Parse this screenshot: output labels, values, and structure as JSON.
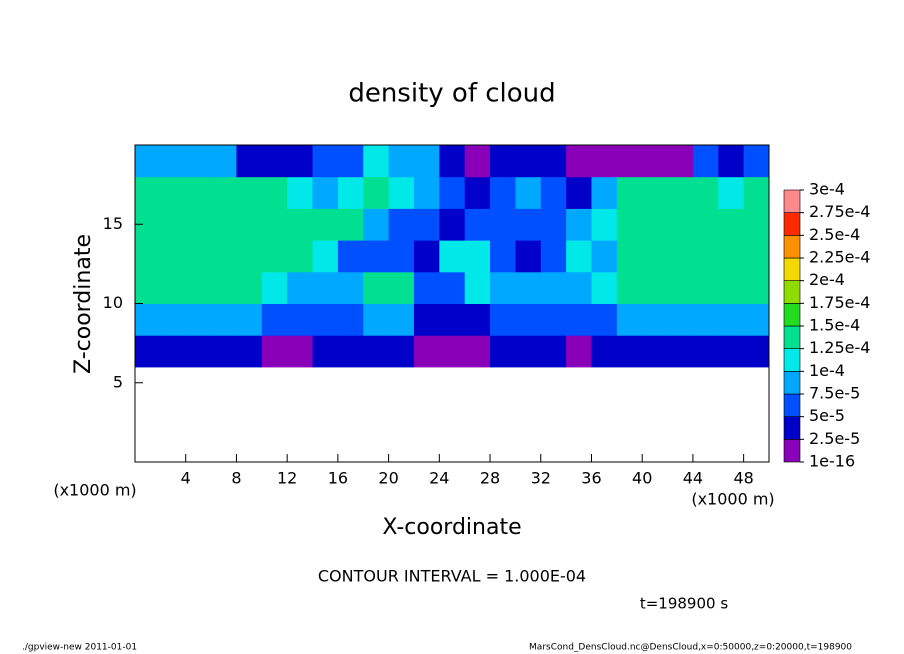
{
  "chart_data": {
    "type": "heatmap",
    "title": "density of cloud",
    "xlabel": "X-coordinate",
    "ylabel": "Z-coordinate",
    "x_unit_label": "(x1000 m)",
    "contour_interval": "CONTOUR INTERVAL = 1.000E-04",
    "time_label": "t=198900 s",
    "xlim": [
      0,
      50
    ],
    "ylim": [
      0,
      20
    ],
    "xticks": [
      4,
      8,
      12,
      16,
      20,
      24,
      28,
      32,
      36,
      40,
      44,
      48
    ],
    "yticks": [
      5,
      10,
      15
    ],
    "x": [
      1,
      3,
      5,
      7,
      9,
      11,
      13,
      15,
      17,
      19,
      21,
      23,
      25,
      27,
      29,
      31,
      33,
      35,
      37,
      39,
      41,
      43,
      45,
      47,
      49
    ],
    "y": [
      1,
      3,
      5,
      7,
      9,
      11,
      13,
      15,
      17,
      19
    ],
    "values": [
      [
        0,
        0,
        0,
        0,
        0,
        0,
        0,
        0,
        0,
        0,
        0,
        0,
        0,
        0,
        0,
        0,
        0,
        0,
        0,
        0,
        0,
        0,
        0,
        0,
        0
      ],
      [
        0,
        0,
        0,
        0,
        0,
        0,
        0,
        0,
        0,
        0,
        0,
        0,
        0,
        0,
        0,
        0,
        0,
        0,
        0,
        0,
        0,
        0,
        0,
        0,
        0
      ],
      [
        0,
        0,
        0,
        0,
        0,
        0,
        0,
        0,
        0,
        0,
        0,
        0,
        0,
        0,
        0,
        0,
        0,
        0,
        0,
        0,
        0,
        0,
        0,
        0,
        0
      ],
      [
        3e-05,
        3e-05,
        3e-05,
        3e-05,
        3e-05,
        2e-05,
        2e-05,
        3e-05,
        3e-05,
        3e-05,
        3e-05,
        2e-05,
        2e-05,
        2e-05,
        3e-05,
        3e-05,
        3e-05,
        2e-05,
        3e-05,
        3e-05,
        3e-05,
        3e-05,
        3e-05,
        3e-05,
        3e-05
      ],
      [
        9e-05,
        9e-05,
        9e-05,
        9e-05,
        9e-05,
        6e-05,
        6e-05,
        6e-05,
        6e-05,
        8e-05,
        8e-05,
        3e-05,
        3e-05,
        3e-05,
        7e-05,
        7e-05,
        7e-05,
        5e-05,
        5e-05,
        9e-05,
        9e-05,
        9e-05,
        9e-05,
        9e-05,
        9e-05
      ],
      [
        0.00014,
        0.00014,
        0.00014,
        0.00014,
        0.00014,
        0.00012,
        9e-05,
        9e-05,
        9e-05,
        0.00013,
        0.00013,
        6e-05,
        5e-05,
        0.0001,
        8e-05,
        8e-05,
        8e-05,
        9e-05,
        0.00011,
        0.00014,
        0.00014,
        0.00014,
        0.00014,
        0.00014,
        0.00014
      ],
      [
        0.00014,
        0.00014,
        0.00014,
        0.00014,
        0.00014,
        0.00014,
        0.00014,
        0.00011,
        6e-05,
        6e-05,
        6e-05,
        4e-05,
        0.00011,
        0.00012,
        5e-05,
        4e-05,
        7e-05,
        0.00011,
        8e-05,
        0.00014,
        0.00014,
        0.00014,
        0.00014,
        0.00014,
        0.00014
      ],
      [
        0.00014,
        0.00014,
        0.00014,
        0.00014,
        0.00014,
        0.00014,
        0.00014,
        0.00014,
        0.00014,
        8e-05,
        5e-05,
        6e-05,
        4e-05,
        6e-05,
        7e-05,
        5e-05,
        6e-05,
        9e-05,
        0.00011,
        0.00014,
        0.00014,
        0.00014,
        0.00014,
        0.00014,
        0.00014
      ],
      [
        0.00014,
        0.00014,
        0.00014,
        0.00014,
        0.00014,
        0.00014,
        0.00012,
        9e-05,
        0.00012,
        0.00013,
        0.00012,
        9e-05,
        5e-05,
        4e-05,
        5e-05,
        8e-05,
        6e-05,
        4e-05,
        8e-05,
        0.00014,
        0.00014,
        0.00014,
        0.00014,
        0.00011,
        0.00014
      ],
      [
        9e-05,
        9e-05,
        9e-05,
        9e-05,
        4e-05,
        4e-05,
        4e-05,
        7e-05,
        7e-05,
        0.00011,
        9e-05,
        9e-05,
        3e-05,
        2e-05,
        3e-05,
        3e-05,
        3e-05,
        2e-05,
        2e-05,
        2e-05,
        2e-05,
        2e-05,
        5e-05,
        3e-05,
        5e-05
      ]
    ],
    "levels": [
      {
        "value": 1e-16,
        "label": "1e-16"
      },
      {
        "value": 2.5e-05,
        "label": "2.5e-5"
      },
      {
        "value": 5e-05,
        "label": "5e-5"
      },
      {
        "value": 7.5e-05,
        "label": "7.5e-5"
      },
      {
        "value": 0.0001,
        "label": "1e-4"
      },
      {
        "value": 0.000125,
        "label": "1.25e-4"
      },
      {
        "value": 0.00015,
        "label": "1.5e-4"
      },
      {
        "value": 0.000175,
        "label": "1.75e-4"
      },
      {
        "value": 0.0002,
        "label": "2e-4"
      },
      {
        "value": 0.000225,
        "label": "2.25e-4"
      },
      {
        "value": 0.00025,
        "label": "2.5e-4"
      },
      {
        "value": 0.000275,
        "label": "2.75e-4"
      },
      {
        "value": 0.0003,
        "label": "3e-4"
      }
    ],
    "colors": [
      "#8a00b8",
      "#0000c8",
      "#0050ff",
      "#00a8ff",
      "#00e8e8",
      "#00e090",
      "#22dc22",
      "#90dc00",
      "#f0d800",
      "#ff9000",
      "#ff2a00",
      "#ff8a8a"
    ]
  },
  "footer": {
    "left": "./gpview-new  2011-01-01",
    "right": "MarsCond_DensCloud.nc@DensCloud,x=0:50000,z=0:20000,t=198900"
  }
}
